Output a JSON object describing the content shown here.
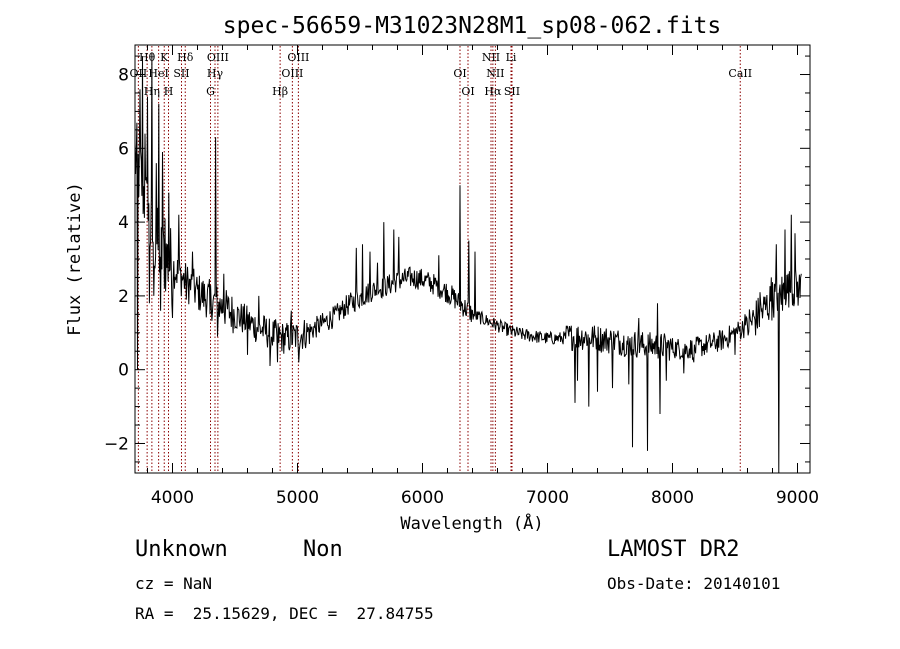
{
  "chart_data": {
    "type": "line",
    "title": "spec-56659-M31023N28M1_sp08-062.fits",
    "xlabel": "Wavelength (Å)",
    "ylabel": "Flux (relative)",
    "xlim": [
      3700,
      9100
    ],
    "ylim": [
      -2.8,
      8.8
    ],
    "xticks": [
      4000,
      5000,
      6000,
      7000,
      8000,
      9000
    ],
    "yticks": [
      -2,
      0,
      2,
      4,
      6,
      8
    ],
    "grid": false,
    "line_color": "#000000",
    "marker_color": "#8b0000",
    "continuum_anchors": [
      [
        3700,
        5.8
      ],
      [
        3760,
        5.0
      ],
      [
        3820,
        3.8
      ],
      [
        3900,
        3.2
      ],
      [
        4000,
        2.8
      ],
      [
        4100,
        2.4
      ],
      [
        4200,
        2.1
      ],
      [
        4350,
        1.8
      ],
      [
        4500,
        1.5
      ],
      [
        4650,
        1.2
      ],
      [
        4800,
        0.95
      ],
      [
        4900,
        0.85
      ],
      [
        5000,
        0.9
      ],
      [
        5100,
        1.05
      ],
      [
        5200,
        1.25
      ],
      [
        5300,
        1.45
      ],
      [
        5400,
        1.75
      ],
      [
        5500,
        1.95
      ],
      [
        5600,
        2.15
      ],
      [
        5700,
        2.25
      ],
      [
        5800,
        2.4
      ],
      [
        5900,
        2.5
      ],
      [
        6000,
        2.45
      ],
      [
        6100,
        2.3
      ],
      [
        6200,
        2.1
      ],
      [
        6300,
        1.8
      ],
      [
        6400,
        1.5
      ],
      [
        6500,
        1.35
      ],
      [
        6600,
        1.2
      ],
      [
        6700,
        1.05
      ],
      [
        6800,
        0.95
      ],
      [
        6900,
        0.9
      ],
      [
        7000,
        0.85
      ],
      [
        7100,
        0.85
      ],
      [
        7200,
        0.9
      ],
      [
        7300,
        0.9
      ],
      [
        7400,
        0.85
      ],
      [
        7500,
        0.8
      ],
      [
        7600,
        0.75
      ],
      [
        7700,
        0.7
      ],
      [
        7800,
        0.65
      ],
      [
        7900,
        0.65
      ],
      [
        8000,
        0.6
      ],
      [
        8100,
        0.55
      ],
      [
        8200,
        0.6
      ],
      [
        8300,
        0.7
      ],
      [
        8400,
        0.8
      ],
      [
        8500,
        1.0
      ],
      [
        8600,
        1.2
      ],
      [
        8700,
        1.5
      ],
      [
        8800,
        1.9
      ],
      [
        8900,
        2.2
      ],
      [
        9000,
        2.2
      ],
      [
        9100,
        2.1
      ]
    ],
    "spikes": [
      [
        3720,
        0.0
      ],
      [
        3740,
        7.6
      ],
      [
        3760,
        8.5
      ],
      [
        3780,
        6.4
      ],
      [
        3800,
        7.4
      ],
      [
        3815,
        1.8
      ],
      [
        3835,
        8.6
      ],
      [
        3850,
        2.0
      ],
      [
        3870,
        5.6
      ],
      [
        3890,
        7.2
      ],
      [
        3905,
        1.6
      ],
      [
        3920,
        5.9
      ],
      [
        3940,
        4.1
      ],
      [
        3970,
        4.8
      ],
      [
        4000,
        1.4
      ],
      [
        4050,
        4.2
      ],
      [
        4110,
        1.9
      ],
      [
        4160,
        3.2
      ],
      [
        4300,
        1.5
      ],
      [
        4345,
        6.3
      ],
      [
        4360,
        0.9
      ],
      [
        4410,
        2.6
      ],
      [
        4600,
        0.4
      ],
      [
        4690,
        2.0
      ],
      [
        4780,
        0.1
      ],
      [
        4840,
        0.2
      ],
      [
        4950,
        1.6
      ],
      [
        5010,
        0.2
      ],
      [
        5470,
        3.3
      ],
      [
        5520,
        3.4
      ],
      [
        5580,
        3.2
      ],
      [
        5640,
        2.9
      ],
      [
        5690,
        4.0
      ],
      [
        5770,
        3.8
      ],
      [
        5810,
        3.6
      ],
      [
        6130,
        3.1
      ],
      [
        6300,
        5.0
      ],
      [
        6370,
        3.5
      ],
      [
        6420,
        3.2
      ],
      [
        6570,
        1.4
      ],
      [
        7220,
        -0.9
      ],
      [
        7240,
        -0.3
      ],
      [
        7330,
        -1.0
      ],
      [
        7400,
        -0.6
      ],
      [
        7520,
        -0.5
      ],
      [
        7650,
        -0.4
      ],
      [
        7680,
        -2.1
      ],
      [
        7730,
        1.4
      ],
      [
        7800,
        -2.2
      ],
      [
        7880,
        1.8
      ],
      [
        7900,
        -1.2
      ],
      [
        7950,
        -0.3
      ],
      [
        8090,
        -0.1
      ],
      [
        8170,
        0.2
      ],
      [
        8500,
        0.4
      ],
      [
        8580,
        1.5
      ],
      [
        8700,
        2.1
      ],
      [
        8790,
        2.5
      ],
      [
        8830,
        3.4
      ],
      [
        8850,
        -2.8
      ],
      [
        8880,
        1.6
      ],
      [
        8900,
        3.8
      ],
      [
        8950,
        4.2
      ],
      [
        8980,
        3.7
      ],
      [
        9030,
        2.6
      ]
    ],
    "lines": [
      {
        "wl": 3797,
        "label": "Hθ",
        "row": 0
      },
      {
        "wl": 3727,
        "label": "OII",
        "row": 1
      },
      {
        "wl": 3835,
        "label": "Hη",
        "row": 2
      },
      {
        "wl": 3889,
        "label": "HeI",
        "row": 1
      },
      {
        "wl": 3934,
        "label": "K",
        "row": 0
      },
      {
        "wl": 3968,
        "label": "H",
        "row": 2
      },
      {
        "wl": 4072,
        "label": "SII",
        "row": 1
      },
      {
        "wl": 4102,
        "label": "Hδ",
        "row": 0
      },
      {
        "wl": 4304,
        "label": "G",
        "row": 2
      },
      {
        "wl": 4340,
        "label": "Hγ",
        "row": 1
      },
      {
        "wl": 4363,
        "label": "OIII",
        "row": 0
      },
      {
        "wl": 4861,
        "label": "Hβ",
        "row": 2
      },
      {
        "wl": 4959,
        "label": "OIII",
        "row": 1
      },
      {
        "wl": 5007,
        "label": "OIII",
        "row": 0
      },
      {
        "wl": 6300,
        "label": "OI",
        "row": 1
      },
      {
        "wl": 6364,
        "label": "OI",
        "row": 2
      },
      {
        "wl": 6548,
        "label": "NII",
        "row": 0
      },
      {
        "wl": 6563,
        "label": "Hα",
        "row": 2
      },
      {
        "wl": 6583,
        "label": "NII",
        "row": 1
      },
      {
        "wl": 6708,
        "label": "Li",
        "row": 0
      },
      {
        "wl": 6716,
        "label": "SII",
        "row": 2
      },
      {
        "wl": 8542,
        "label": "CaII",
        "row": 1
      }
    ]
  },
  "footer": {
    "class_name": "Unknown",
    "subclass": "Non",
    "survey": "LAMOST DR2",
    "cz": "cz = NaN",
    "obs_date": "Obs-Date: 20140101",
    "coords": "RA =  25.15629, DEC =  27.84755"
  }
}
